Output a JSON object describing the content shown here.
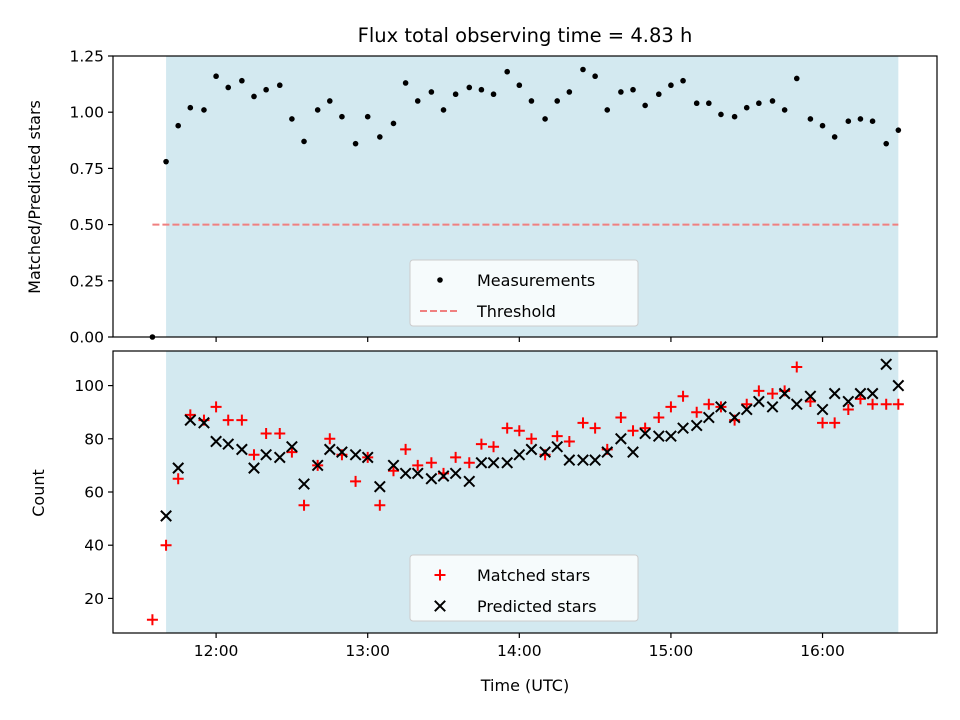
{
  "chart_data": {
    "title": "Flux total observing time = 4.83 h",
    "xlabel": "Time (UTC)",
    "xticks": [
      "12:00",
      "13:00",
      "14:00",
      "15:00",
      "16:00"
    ],
    "shade_color": "#d3e9f0",
    "panels": [
      {
        "type": "scatter",
        "ylabel": "Matched/Predicted stars",
        "ylim": [
          0,
          1.25
        ],
        "yticks": [
          "0.00",
          "0.25",
          "0.50",
          "0.75",
          "1.00",
          "1.25"
        ],
        "legend": {
          "placement": "lower-center",
          "entries": [
            "Measurements",
            "Threshold"
          ]
        },
        "series": [
          {
            "name": "Measurements",
            "color": "#000000",
            "marker": "dot",
            "x": [
              11.58,
              11.67,
              11.75,
              11.83,
              11.92,
              12.0,
              12.08,
              12.17,
              12.25,
              12.33,
              12.42,
              12.5,
              12.58,
              12.67,
              12.75,
              12.83,
              12.92,
              13.0,
              13.08,
              13.17,
              13.25,
              13.33,
              13.42,
              13.5,
              13.58,
              13.67,
              13.75,
              13.83,
              13.92,
              14.0,
              14.08,
              14.17,
              14.25,
              14.33,
              14.42,
              14.5,
              14.58,
              14.67,
              14.75,
              14.83,
              14.92,
              15.0,
              15.08,
              15.17,
              15.25,
              15.33,
              15.42,
              15.5,
              15.58,
              15.67,
              15.75,
              15.83,
              15.92,
              16.0,
              16.08,
              16.17,
              16.25,
              16.33,
              16.42,
              16.5
            ],
            "y": [
              0.0,
              0.78,
              0.94,
              1.02,
              1.01,
              1.16,
              1.11,
              1.14,
              1.07,
              1.1,
              1.12,
              0.97,
              0.87,
              1.01,
              1.05,
              0.98,
              0.86,
              0.98,
              0.89,
              0.95,
              1.13,
              1.05,
              1.09,
              1.01,
              1.08,
              1.11,
              1.1,
              1.08,
              1.18,
              1.12,
              1.05,
              0.97,
              1.05,
              1.09,
              1.19,
              1.16,
              1.01,
              1.09,
              1.1,
              1.03,
              1.08,
              1.12,
              1.14,
              1.04,
              1.04,
              0.99,
              0.98,
              1.02,
              1.04,
              1.05,
              1.01,
              1.15,
              0.97,
              0.94,
              0.89,
              0.96,
              0.97,
              0.96,
              0.86,
              0.92
            ]
          },
          {
            "name": "Threshold",
            "color": "#f08080",
            "line": "dashed",
            "y_const": 0.5,
            "x_range": [
              11.58,
              16.5
            ]
          }
        ]
      },
      {
        "type": "scatter",
        "ylabel": "Count",
        "ylim": [
          7,
          113
        ],
        "yticks": [
          "20",
          "40",
          "60",
          "80",
          "100"
        ],
        "legend": {
          "placement": "lower-center",
          "entries": [
            "Matched stars",
            "Predicted stars"
          ]
        },
        "series": [
          {
            "name": "Matched stars",
            "color": "#ff0000",
            "marker": "plus",
            "x": [
              11.58,
              11.67,
              11.75,
              11.83,
              11.92,
              12.0,
              12.08,
              12.17,
              12.25,
              12.33,
              12.42,
              12.5,
              12.58,
              12.67,
              12.75,
              12.83,
              12.92,
              13.0,
              13.08,
              13.17,
              13.25,
              13.33,
              13.42,
              13.5,
              13.58,
              13.67,
              13.75,
              13.83,
              13.92,
              14.0,
              14.08,
              14.17,
              14.25,
              14.33,
              14.42,
              14.5,
              14.58,
              14.67,
              14.75,
              14.83,
              14.92,
              15.0,
              15.08,
              15.17,
              15.25,
              15.33,
              15.42,
              15.5,
              15.58,
              15.67,
              15.75,
              15.83,
              15.92,
              16.0,
              16.08,
              16.17,
              16.25,
              16.33,
              16.42,
              16.5
            ],
            "y": [
              12,
              40,
              65,
              89,
              87,
              92,
              87,
              87,
              74,
              82,
              82,
              75,
              55,
              70,
              80,
              74,
              64,
              73,
              55,
              68,
              76,
              70,
              71,
              67,
              73,
              71,
              78,
              77,
              84,
              83,
              80,
              74,
              81,
              79,
              86,
              84,
              76,
              88,
              83,
              84,
              88,
              92,
              96,
              90,
              93,
              92,
              87,
              93,
              98,
              97,
              98,
              107,
              94,
              86,
              86,
              91,
              95,
              93,
              93,
              93
            ]
          },
          {
            "name": "Predicted stars",
            "color": "#000000",
            "marker": "x",
            "x": [
              11.58,
              11.67,
              11.75,
              11.83,
              11.92,
              12.0,
              12.08,
              12.17,
              12.25,
              12.33,
              12.42,
              12.5,
              12.58,
              12.67,
              12.75,
              12.83,
              12.92,
              13.0,
              13.08,
              13.17,
              13.25,
              13.33,
              13.42,
              13.5,
              13.58,
              13.67,
              13.75,
              13.83,
              13.92,
              14.0,
              14.08,
              14.17,
              14.25,
              14.33,
              14.42,
              14.5,
              14.58,
              14.67,
              14.75,
              14.83,
              14.92,
              15.0,
              15.08,
              15.17,
              15.25,
              15.33,
              15.42,
              15.5,
              15.58,
              15.67,
              15.75,
              15.83,
              15.92,
              16.0,
              16.08,
              16.17,
              16.25,
              16.33,
              16.42,
              16.5
            ],
            "y": [
              null,
              51,
              69,
              87,
              86,
              79,
              78,
              76,
              69,
              74,
              73,
              77,
              63,
              70,
              76,
              75,
              74,
              73,
              62,
              70,
              67,
              67,
              65,
              66,
              67,
              64,
              71,
              71,
              71,
              74,
              76,
              75,
              77,
              72,
              72,
              72,
              75,
              80,
              75,
              82,
              81,
              81,
              84,
              85,
              88,
              92,
              88,
              91,
              94,
              92,
              97,
              93,
              96,
              91,
              97,
              94,
              97,
              97,
              108,
              100
            ]
          }
        ]
      }
    ]
  }
}
